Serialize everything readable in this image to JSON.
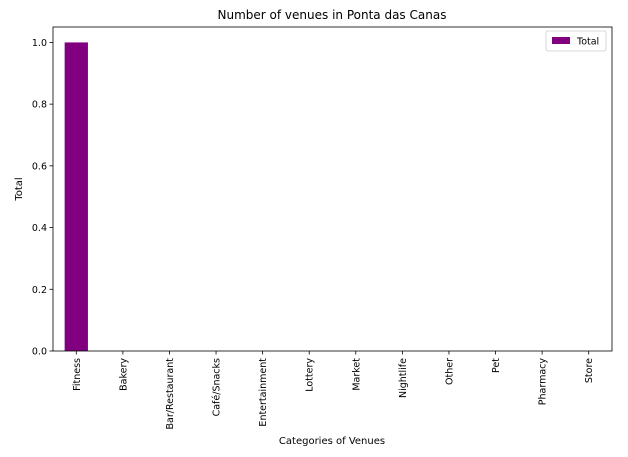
{
  "chart_data": {
    "type": "bar",
    "title": "Number of venues in Ponta das Canas",
    "xlabel": "Categories of Venues",
    "ylabel": "Total",
    "categories": [
      "Fitness",
      "Bakery",
      "Bar/Restaurant",
      "Café/Snacks",
      "Entertainment",
      "Lottery",
      "Market",
      "Nightlife",
      "Other",
      "Pet",
      "Pharmacy",
      "Store"
    ],
    "series": [
      {
        "name": "Total",
        "values": [
          1,
          0,
          0,
          0,
          0,
          0,
          0,
          0,
          0,
          0,
          0,
          0
        ],
        "color": "#800080"
      }
    ],
    "ylim": [
      0,
      1.05
    ],
    "yticks": [
      "0.0",
      "0.2",
      "0.4",
      "0.6",
      "0.8",
      "1.0"
    ],
    "grid": false,
    "legend": "top-right"
  }
}
